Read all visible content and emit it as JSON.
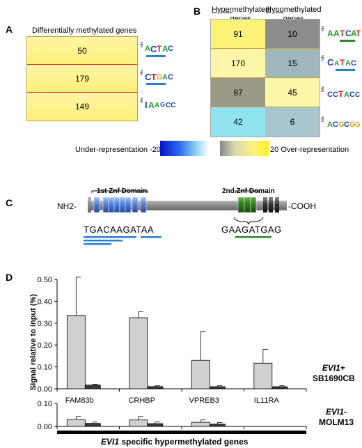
{
  "panels": {
    "A": {
      "label": "A",
      "title": "Differentially methylated genes",
      "values": [
        "50",
        "179",
        "149"
      ]
    },
    "B": {
      "label": "B",
      "col_hyper": "Hypermethylated genes",
      "col_hypo": "Hypomethylated genes",
      "col_hyper_prefix": "Hyper",
      "col_hyper_rest": "methylated",
      "col_hypo_prefix": "Hypo",
      "col_hypo_rest": "methylated",
      "col_genes": "genes",
      "rows": [
        {
          "hyper": "91",
          "hypo": "10",
          "hyper_color": "#fdf27a",
          "hypo_color": "#8c8c8c"
        },
        {
          "hyper": "170",
          "hypo": "15",
          "hyper_color": "#fdf6a8",
          "hypo_color": "#9fb7bb"
        },
        {
          "hyper": "87",
          "hypo": "45",
          "hyper_color": "#9c9a86",
          "hypo_color": "#fdf6a8"
        },
        {
          "hyper": "42",
          "hypo": "6",
          "hyper_color": "#8fe4ef",
          "hypo_color": "#a9c6cc"
        }
      ]
    },
    "scale": {
      "under_label": "Under-representation",
      "min": "-20",
      "max": "20",
      "over_label": "Over-representation"
    },
    "C": {
      "label": "C",
      "nterm": "NH2-",
      "cterm": "-COOH",
      "domain1": "1st Znf Domain",
      "domain2": "2nd Znf Domain",
      "seq1": "TGACAAGATAA",
      "seq2": "GAAGATGAG"
    },
    "D": {
      "label": "D",
      "ylabel": "Signal relative to input (%)",
      "xlabel_italic": "EVI1",
      "xlabel_rest": " specific hypermethylated genes",
      "top_label_italic": "EVI1",
      "top_label_sign": "+",
      "top_label_line2": "SB1690CB",
      "bottom_label_italic": "EVI1",
      "bottom_label_sign": "-",
      "bottom_label_line2": "MOLM13"
    }
  },
  "motif_axis": "bits",
  "chart_data": [
    {
      "type": "bar",
      "title": "",
      "categories": [
        "FAM83b",
        "CRHBP",
        "VPREB3",
        "IL11RA"
      ],
      "ylim": [
        0,
        0.5
      ],
      "yticks": [
        "0.00",
        "0.10",
        "0.20",
        "0.30",
        "0.40",
        "0.50"
      ],
      "series": [
        {
          "values": [
            0.335,
            0.325,
            0.13,
            0.117
          ],
          "errors": [
            0.175,
            0.027,
            0.132,
            0.063
          ],
          "color": "#d0d0d0"
        },
        {
          "values": [
            0.017,
            0.01,
            0.008,
            0.007
          ],
          "errors": [
            0.004,
            0.004,
            0.006,
            0.007
          ],
          "color": "#3a3a3a"
        }
      ]
    },
    {
      "type": "bar",
      "title": "",
      "categories": [
        "FAM83b",
        "CRHBP",
        "VPREB3",
        "IL11RA"
      ],
      "ylim": [
        0,
        0.1
      ],
      "yticks": [
        "0.00",
        "0.10"
      ],
      "series": [
        {
          "values": [
            0.03,
            0.028,
            0.018,
            0
          ],
          "errors": [
            0.013,
            0.015,
            0.01,
            0
          ],
          "color": "#d0d0d0"
        },
        {
          "values": [
            0.013,
            0.012,
            0.01,
            0
          ],
          "errors": [
            0.006,
            0.007,
            0.007,
            0
          ],
          "color": "#3a3a3a"
        }
      ]
    }
  ]
}
